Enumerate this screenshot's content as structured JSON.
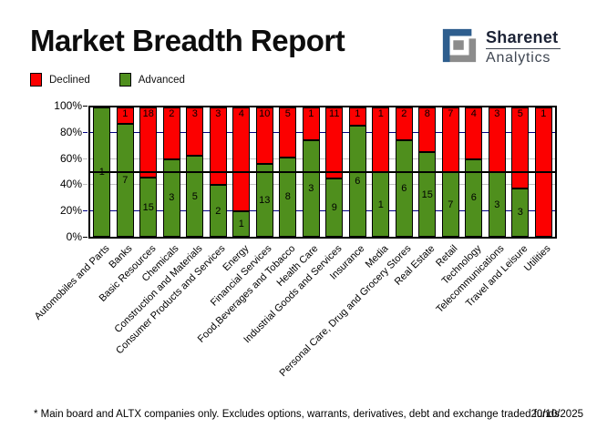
{
  "header": {
    "title": "Market Breadth Report",
    "logo": {
      "line1": "Sharenet",
      "line2": "Analytics",
      "blue": "#2e5e8e",
      "gray": "#8c8c8c"
    }
  },
  "legend": [
    {
      "label": "Declined",
      "color": "#fc0000"
    },
    {
      "label": "Advanced",
      "color": "#4f8f1d"
    }
  ],
  "footer": {
    "note": "* Main board and ALTX companies only. Excludes options, warrants, derivatives, debt and exchange traded funds",
    "date": "20/10/2025"
  },
  "chart_data": {
    "type": "bar",
    "stacked": true,
    "normalized": "percent_of_total",
    "title": "Market Breadth Report",
    "categories": [
      "Automobiles and Parts",
      "Banks",
      "Basic Resources",
      "Chemicals",
      "Construction and Materials",
      "Consumer Products and Services",
      "Energy",
      "Financial Services",
      "Food,Beverages and Tobacco",
      "Health Care",
      "Industrial Goods and Services",
      "Insurance",
      "Media",
      "Personal Care, Drug and Grocery Stores",
      "Real Estate",
      "Retail",
      "Technology",
      "Telecommunications",
      "Travel and Leisure",
      "Utilities"
    ],
    "series": [
      {
        "name": "Advanced",
        "color": "#4f8f1d",
        "values": [
          1,
          7,
          15,
          3,
          5,
          2,
          1,
          13,
          8,
          3,
          9,
          6,
          1,
          6,
          15,
          7,
          6,
          3,
          3,
          0
        ]
      },
      {
        "name": "Declined",
        "color": "#fc0000",
        "values": [
          0,
          1,
          18,
          2,
          3,
          3,
          4,
          10,
          5,
          1,
          11,
          1,
          1,
          2,
          8,
          7,
          4,
          3,
          5,
          1
        ]
      }
    ],
    "ylim": [
      0,
      100
    ],
    "yticks": [
      "100%",
      "80%",
      "60%",
      "40%",
      "20%",
      "0%"
    ],
    "ytick_colors": [
      "#000000",
      "#000080",
      "#c0c0c0",
      "#c0c0c0",
      "#000080",
      "#000000"
    ],
    "gridlines": [
      {
        "pct": 80,
        "color": "#000080"
      },
      {
        "pct": 60,
        "color": "#c0c0c0"
      },
      {
        "pct": 40,
        "color": "#c0c0c0"
      },
      {
        "pct": 20,
        "color": "#000080"
      }
    ],
    "reference_line_pct": 50,
    "legend_position": "top-left",
    "bar_value_labels": "counts shown on segments"
  }
}
